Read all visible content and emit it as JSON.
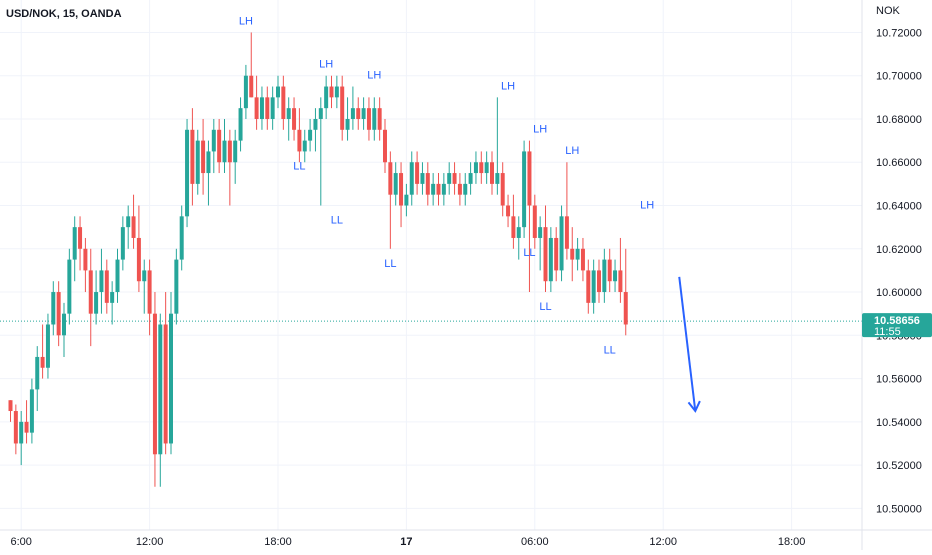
{
  "symbol": "USD/NOK, 15, OANDA",
  "currency_label": "NOK",
  "price_tag": {
    "value": "10.58656",
    "time": "11:55"
  },
  "colors": {
    "up": "#26a69a",
    "down": "#ef5350",
    "accent": "#2962ff",
    "grid": "#f0f3fa"
  },
  "chart_data": {
    "type": "candlestick",
    "ylim": [
      10.49,
      10.735
    ],
    "y_ticks": [
      "10.72000",
      "10.70000",
      "10.68000",
      "10.66000",
      "10.64000",
      "10.62000",
      "10.60000",
      "10.58000",
      "10.56000",
      "10.54000",
      "10.52000",
      "10.50000"
    ],
    "y_tick_values": [
      10.72,
      10.7,
      10.68,
      10.66,
      10.64,
      10.62,
      10.6,
      10.58,
      10.56,
      10.54,
      10.52,
      10.5
    ],
    "x_ticks": [
      "6:00",
      "12:00",
      "18:00",
      "17",
      "06:00",
      "12:00",
      "18:00"
    ],
    "x_tick_bars": [
      2,
      26,
      50,
      74,
      98,
      122,
      146
    ],
    "last_price": 10.58656,
    "candles": [
      [
        10.55,
        10.55,
        10.54,
        10.545
      ],
      [
        10.545,
        10.548,
        10.525,
        10.53
      ],
      [
        10.53,
        10.545,
        10.52,
        10.54
      ],
      [
        10.54,
        10.55,
        10.53,
        10.535
      ],
      [
        10.535,
        10.56,
        10.53,
        10.555
      ],
      [
        10.555,
        10.575,
        10.545,
        10.57
      ],
      [
        10.57,
        10.585,
        10.56,
        10.565
      ],
      [
        10.565,
        10.59,
        10.56,
        10.585
      ],
      [
        10.585,
        10.605,
        10.58,
        10.6
      ],
      [
        10.6,
        10.605,
        10.575,
        10.58
      ],
      [
        10.58,
        10.595,
        10.57,
        10.59
      ],
      [
        10.59,
        10.62,
        10.585,
        10.615
      ],
      [
        10.615,
        10.635,
        10.605,
        10.63
      ],
      [
        10.63,
        10.635,
        10.61,
        10.62
      ],
      [
        10.62,
        10.625,
        10.6,
        10.61
      ],
      [
        10.61,
        10.62,
        10.575,
        10.59
      ],
      [
        10.59,
        10.61,
        10.585,
        10.6
      ],
      [
        10.6,
        10.62,
        10.59,
        10.61
      ],
      [
        10.61,
        10.615,
        10.59,
        10.595
      ],
      [
        10.595,
        10.605,
        10.585,
        10.6
      ],
      [
        10.6,
        10.62,
        10.595,
        10.615
      ],
      [
        10.615,
        10.635,
        10.61,
        10.63
      ],
      [
        10.63,
        10.64,
        10.62,
        10.635
      ],
      [
        10.635,
        10.645,
        10.62,
        10.625
      ],
      [
        10.625,
        10.64,
        10.6,
        10.605
      ],
      [
        10.605,
        10.615,
        10.59,
        10.61
      ],
      [
        10.61,
        10.615,
        10.58,
        10.59
      ],
      [
        10.59,
        10.6,
        10.51,
        10.525
      ],
      [
        10.525,
        10.59,
        10.51,
        10.585
      ],
      [
        10.585,
        10.6,
        10.525,
        10.53
      ],
      [
        10.53,
        10.6,
        10.525,
        10.59
      ],
      [
        10.59,
        10.62,
        10.585,
        10.615
      ],
      [
        10.615,
        10.64,
        10.61,
        10.635
      ],
      [
        10.635,
        10.68,
        10.63,
        10.675
      ],
      [
        10.675,
        10.685,
        10.64,
        10.65
      ],
      [
        10.65,
        10.675,
        10.645,
        10.67
      ],
      [
        10.67,
        10.68,
        10.645,
        10.655
      ],
      [
        10.655,
        10.67,
        10.64,
        10.665
      ],
      [
        10.665,
        10.68,
        10.655,
        10.675
      ],
      [
        10.675,
        10.68,
        10.655,
        10.66
      ],
      [
        10.66,
        10.68,
        10.655,
        10.67
      ],
      [
        10.67,
        10.675,
        10.64,
        10.66
      ],
      [
        10.66,
        10.675,
        10.65,
        10.67
      ],
      [
        10.67,
        10.69,
        10.665,
        10.685
      ],
      [
        10.685,
        10.705,
        10.68,
        10.7
      ],
      [
        10.7,
        10.72,
        10.69,
        10.69
      ],
      [
        10.69,
        10.7,
        10.675,
        10.68
      ],
      [
        10.68,
        10.695,
        10.675,
        10.69
      ],
      [
        10.69,
        10.695,
        10.675,
        10.68
      ],
      [
        10.68,
        10.695,
        10.675,
        10.69
      ],
      [
        10.69,
        10.7,
        10.685,
        10.695
      ],
      [
        10.695,
        10.7,
        10.675,
        10.68
      ],
      [
        10.68,
        10.69,
        10.67,
        10.685
      ],
      [
        10.685,
        10.69,
        10.67,
        10.675
      ],
      [
        10.675,
        10.685,
        10.66,
        10.665
      ],
      [
        10.665,
        10.675,
        10.66,
        10.67
      ],
      [
        10.67,
        10.68,
        10.665,
        10.675
      ],
      [
        10.675,
        10.685,
        10.665,
        10.68
      ],
      [
        10.68,
        10.69,
        10.64,
        10.685
      ],
      [
        10.685,
        10.7,
        10.68,
        10.695
      ],
      [
        10.695,
        10.7,
        10.685,
        10.69
      ],
      [
        10.69,
        10.7,
        10.685,
        10.695
      ],
      [
        10.695,
        10.7,
        10.67,
        10.675
      ],
      [
        10.675,
        10.69,
        10.67,
        10.68
      ],
      [
        10.68,
        10.695,
        10.675,
        10.685
      ],
      [
        10.685,
        10.69,
        10.675,
        10.68
      ],
      [
        10.68,
        10.69,
        10.675,
        10.685
      ],
      [
        10.685,
        10.69,
        10.67,
        10.675
      ],
      [
        10.675,
        10.69,
        10.67,
        10.685
      ],
      [
        10.685,
        10.69,
        10.67,
        10.675
      ],
      [
        10.675,
        10.68,
        10.655,
        10.66
      ],
      [
        10.66,
        10.665,
        10.62,
        10.645
      ],
      [
        10.645,
        10.66,
        10.64,
        10.655
      ],
      [
        10.655,
        10.66,
        10.63,
        10.64
      ],
      [
        10.64,
        10.65,
        10.635,
        10.645
      ],
      [
        10.645,
        10.665,
        10.64,
        10.66
      ],
      [
        10.66,
        10.665,
        10.645,
        10.65
      ],
      [
        10.65,
        10.66,
        10.645,
        10.655
      ],
      [
        10.655,
        10.66,
        10.64,
        10.645
      ],
      [
        10.645,
        10.655,
        10.64,
        10.65
      ],
      [
        10.65,
        10.655,
        10.64,
        10.645
      ],
      [
        10.645,
        10.655,
        10.64,
        10.65
      ],
      [
        10.65,
        10.66,
        10.645,
        10.655
      ],
      [
        10.655,
        10.66,
        10.645,
        10.65
      ],
      [
        10.65,
        10.655,
        10.64,
        10.645
      ],
      [
        10.645,
        10.655,
        10.64,
        10.65
      ],
      [
        10.65,
        10.66,
        10.645,
        10.655
      ],
      [
        10.655,
        10.665,
        10.65,
        10.66
      ],
      [
        10.66,
        10.665,
        10.65,
        10.655
      ],
      [
        10.655,
        10.665,
        10.65,
        10.66
      ],
      [
        10.66,
        10.665,
        10.645,
        10.65
      ],
      [
        10.65,
        10.69,
        10.645,
        10.655
      ],
      [
        10.655,
        10.66,
        10.635,
        10.64
      ],
      [
        10.64,
        10.645,
        10.63,
        10.635
      ],
      [
        10.635,
        10.645,
        10.62,
        10.625
      ],
      [
        10.625,
        10.635,
        10.615,
        10.63
      ],
      [
        10.63,
        10.67,
        10.625,
        10.665
      ],
      [
        10.665,
        10.67,
        10.6,
        10.64
      ],
      [
        10.64,
        10.645,
        10.62,
        10.625
      ],
      [
        10.625,
        10.635,
        10.61,
        10.63
      ],
      [
        10.63,
        10.64,
        10.6,
        10.605
      ],
      [
        10.605,
        10.63,
        10.6,
        10.625
      ],
      [
        10.625,
        10.63,
        10.605,
        10.61
      ],
      [
        10.61,
        10.64,
        10.605,
        10.635
      ],
      [
        10.635,
        10.66,
        10.615,
        10.62
      ],
      [
        10.62,
        10.63,
        10.605,
        10.615
      ],
      [
        10.615,
        10.625,
        10.61,
        10.62
      ],
      [
        10.62,
        10.625,
        10.605,
        10.61
      ],
      [
        10.61,
        10.615,
        10.59,
        10.595
      ],
      [
        10.595,
        10.615,
        10.59,
        10.61
      ],
      [
        10.61,
        10.615,
        10.595,
        10.6
      ],
      [
        10.6,
        10.62,
        10.595,
        10.615
      ],
      [
        10.615,
        10.62,
        10.6,
        10.605
      ],
      [
        10.605,
        10.615,
        10.6,
        10.61
      ],
      [
        10.61,
        10.625,
        10.595,
        10.6
      ],
      [
        10.6,
        10.62,
        10.58,
        10.585
      ]
    ],
    "markers": [
      {
        "bar": 44,
        "price": 10.72,
        "label": "LH",
        "side": "above"
      },
      {
        "bar": 54,
        "price": 10.665,
        "label": "LL",
        "side": "below"
      },
      {
        "bar": 59,
        "price": 10.7,
        "label": "LH",
        "side": "above"
      },
      {
        "bar": 61,
        "price": 10.64,
        "label": "LL",
        "side": "below"
      },
      {
        "bar": 68,
        "price": 10.695,
        "label": "LH",
        "side": "above"
      },
      {
        "bar": 71,
        "price": 10.62,
        "label": "LL",
        "side": "below"
      },
      {
        "bar": 93,
        "price": 10.69,
        "label": "LH",
        "side": "above"
      },
      {
        "bar": 97,
        "price": 10.625,
        "label": "LL",
        "side": "below"
      },
      {
        "bar": 99,
        "price": 10.67,
        "label": "LH",
        "side": "above"
      },
      {
        "bar": 100,
        "price": 10.6,
        "label": "LL",
        "side": "below"
      },
      {
        "bar": 105,
        "price": 10.66,
        "label": "LH",
        "side": "above"
      },
      {
        "bar": 112,
        "price": 10.58,
        "label": "LL",
        "side": "below"
      },
      {
        "bar": 119,
        "price": 10.635,
        "label": "LH",
        "side": "above"
      }
    ],
    "arrow": {
      "from_bar": 125,
      "from_price": 10.607,
      "to_bar": 128,
      "to_price": 10.545
    }
  }
}
